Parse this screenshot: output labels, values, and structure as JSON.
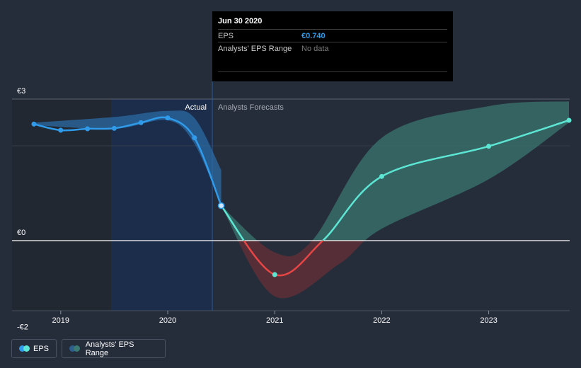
{
  "tooltip": {
    "date": "Jun 30 2020",
    "eps_label": "EPS",
    "eps_value": "€0.740",
    "range_label": "Analysts' EPS Range",
    "range_value": "No data"
  },
  "labels": {
    "actual": "Actual",
    "forecast": "Analysts Forecasts"
  },
  "legend": {
    "eps": "EPS",
    "range": "Analysts' EPS Range"
  },
  "colors": {
    "background": "#262d3a",
    "actual_highlight": "#1b2d4a",
    "actual_line": "#2f9bea",
    "actual_band": "#2c6aa3",
    "forecast_line": "#5ce6d3",
    "forecast_band": "#3a7a73",
    "negative_line": "#e84545",
    "negative_band": "#6b2f36"
  },
  "chart_data": {
    "type": "line",
    "ylim": [
      -2,
      3
    ],
    "xlim": [
      2018.75,
      2023.75
    ],
    "y_ticks": [
      {
        "value": 3,
        "label": "€3"
      },
      {
        "value": 0,
        "label": "€0"
      },
      {
        "value": -2,
        "label": "-€2"
      }
    ],
    "x_ticks": [
      {
        "value": 2019,
        "label": "2019"
      },
      {
        "value": 2020,
        "label": "2020"
      },
      {
        "value": 2021,
        "label": "2021"
      },
      {
        "value": 2022,
        "label": "2022"
      },
      {
        "value": 2023,
        "label": "2023"
      }
    ],
    "series": [
      {
        "name": "EPS",
        "kind": "actual",
        "points": [
          {
            "x": 2018.75,
            "y": 2.47
          },
          {
            "x": 2019.0,
            "y": 2.34
          },
          {
            "x": 2019.25,
            "y": 2.37
          },
          {
            "x": 2019.5,
            "y": 2.38
          },
          {
            "x": 2019.75,
            "y": 2.5
          },
          {
            "x": 2020.0,
            "y": 2.6
          },
          {
            "x": 2020.25,
            "y": 2.18
          },
          {
            "x": 2020.5,
            "y": 0.74
          }
        ]
      },
      {
        "name": "EPS",
        "kind": "forecast",
        "points": [
          {
            "x": 2020.5,
            "y": 0.74
          },
          {
            "x": 2021.0,
            "y": -0.72
          },
          {
            "x": 2021.45,
            "y": 0.0
          },
          {
            "x": 2022.0,
            "y": 1.36
          },
          {
            "x": 2023.0,
            "y": 2.0
          },
          {
            "x": 2023.75,
            "y": 2.55
          }
        ]
      }
    ],
    "actual_range": {
      "upper": [
        {
          "x": 2018.75,
          "y": 2.5
        },
        {
          "x": 2019.5,
          "y": 2.62
        },
        {
          "x": 2020.0,
          "y": 2.75
        },
        {
          "x": 2020.25,
          "y": 2.6
        },
        {
          "x": 2020.5,
          "y": 1.5
        }
      ],
      "lower": [
        {
          "x": 2018.75,
          "y": 2.45
        },
        {
          "x": 2019.5,
          "y": 2.37
        },
        {
          "x": 2020.0,
          "y": 2.55
        },
        {
          "x": 2020.25,
          "y": 2.05
        },
        {
          "x": 2020.5,
          "y": 0.74
        }
      ]
    },
    "forecast_range": {
      "upper": [
        {
          "x": 2020.5,
          "y": 0.74
        },
        {
          "x": 2021.0,
          "y": -0.25
        },
        {
          "x": 2021.35,
          "y": 0.0
        },
        {
          "x": 2022.0,
          "y": 2.18
        },
        {
          "x": 2023.0,
          "y": 2.85
        },
        {
          "x": 2023.75,
          "y": 2.95
        }
      ],
      "lower": [
        {
          "x": 2020.5,
          "y": 0.74
        },
        {
          "x": 2021.0,
          "y": -1.18
        },
        {
          "x": 2021.6,
          "y": -0.5
        },
        {
          "x": 2022.0,
          "y": 0.25
        },
        {
          "x": 2023.0,
          "y": 1.3
        },
        {
          "x": 2023.75,
          "y": 2.5
        }
      ]
    },
    "highlight_point": {
      "x": 2020.5,
      "y": 0.74
    }
  }
}
